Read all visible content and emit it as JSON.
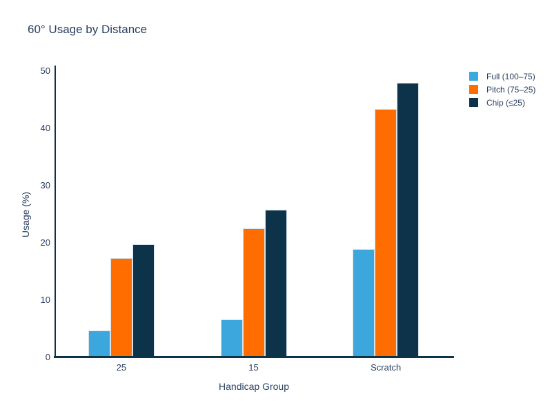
{
  "title": "60° Usage by Distance",
  "colors": {
    "text": "#2a3f5f",
    "axis_line": "#0d334a",
    "background": "#ffffff",
    "bar_border": "#d9e0e8"
  },
  "chart_data": {
    "type": "bar",
    "title": "60° Usage by Distance",
    "xlabel": "Handicap Group",
    "ylabel": "Usage (%)",
    "categories": [
      "25",
      "15",
      "Scratch"
    ],
    "series": [
      {
        "name": "Full (100–75)",
        "color": "#3ba7dc",
        "values": [
          4.7,
          6.6,
          18.9
        ]
      },
      {
        "name": "Pitch (75–25)",
        "color": "#ff6d00",
        "values": [
          17.3,
          22.5,
          43.4
        ]
      },
      {
        "name": "Chip (≤25)",
        "color": "#0d334a",
        "values": [
          19.7,
          25.8,
          47.9
        ]
      }
    ],
    "ylim": [
      0,
      50
    ],
    "ytick_step": 10,
    "yticks": [
      0,
      10,
      20,
      30,
      40,
      50
    ],
    "grid": false,
    "legend_position": "right"
  }
}
